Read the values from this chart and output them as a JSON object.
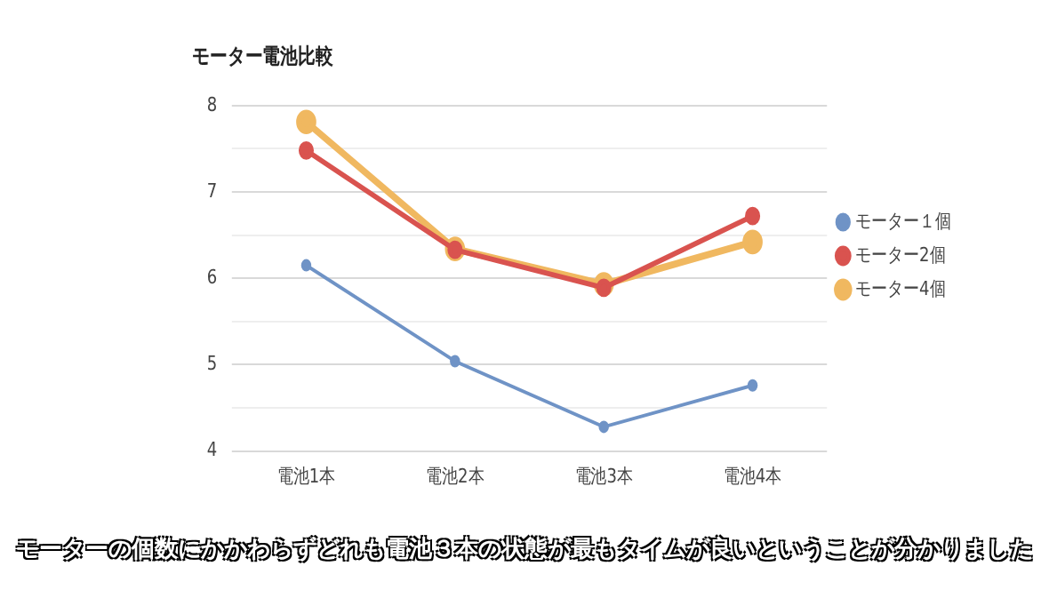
{
  "chart_data": {
    "type": "line",
    "title": "モーター電池比較",
    "categories": [
      "電池1本",
      "電池2本",
      "電池3本",
      "電池4本"
    ],
    "series": [
      {
        "name": "モーター１個",
        "color": "#6f93c6",
        "values": [
          6.15,
          5.04,
          4.28,
          4.76
        ]
      },
      {
        "name": "モーター2個",
        "color": "#d9534f",
        "values": [
          7.48,
          6.33,
          5.89,
          6.72
        ]
      },
      {
        "name": "モーター4個",
        "color": "#f0b860",
        "values": [
          7.81,
          6.34,
          5.93,
          6.42
        ]
      }
    ],
    "ylim": [
      4,
      8
    ],
    "yticks": [
      4,
      {
        "value": 4.5,
        "label": null
      },
      5,
      {
        "value": 5.5,
        "label": null
      },
      6,
      {
        "value": 6.5,
        "label": null
      },
      7,
      {
        "value": 7.5,
        "label": null
      },
      8
    ],
    "grid": "y",
    "legend": "right",
    "marker": "circle",
    "line_style": "solid",
    "annotations": [
      "モーターの個数にかかわらずどれも電池３本の状態が最もタイムが良いということが分かりました"
    ]
  }
}
